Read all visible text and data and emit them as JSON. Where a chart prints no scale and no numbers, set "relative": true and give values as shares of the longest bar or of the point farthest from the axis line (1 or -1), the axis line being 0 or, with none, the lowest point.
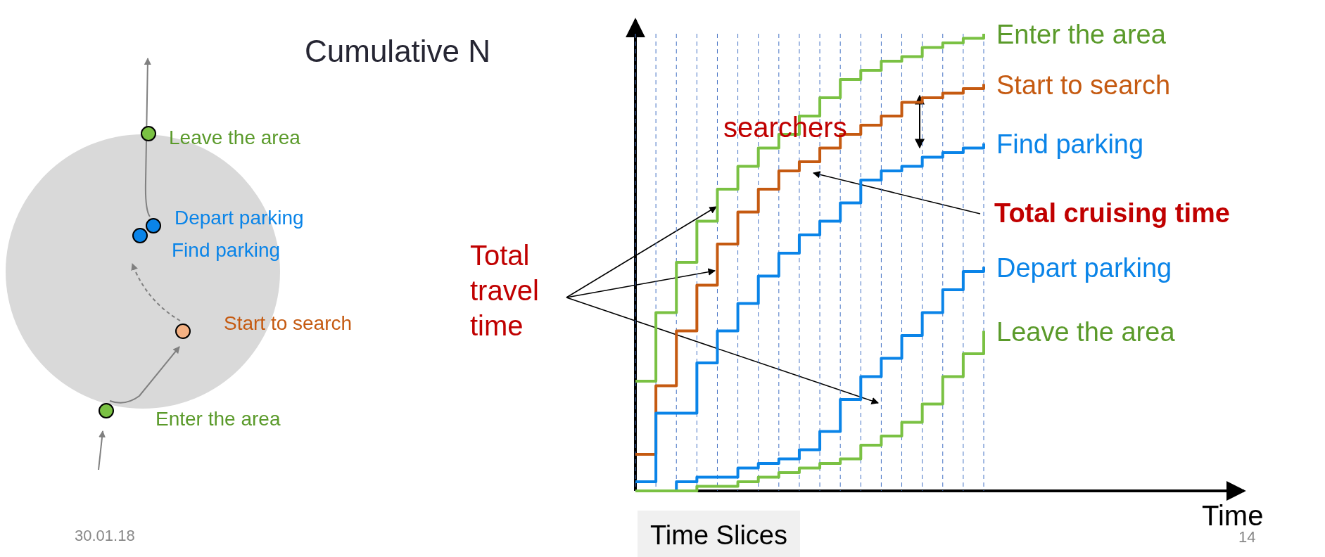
{
  "chart_data": {
    "type": "step",
    "relative": true,
    "ylabel": "Cumulative N",
    "grid": "x",
    "legend": false,
    "marker": "none",
    "line_style": "solid",
    "categories": [
      null,
      null,
      null,
      null,
      null,
      null,
      null,
      null,
      null,
      null,
      null,
      null,
      null,
      null,
      null,
      null,
      null,
      null
    ],
    "series": [
      {
        "name": "Enter the area",
        "color": "#7ac143",
        "values": [
          0.24,
          0.39,
          0.5,
          0.59,
          0.66,
          0.71,
          0.75,
          0.78,
          0.82,
          0.86,
          0.9,
          0.92,
          0.94,
          0.95,
          0.97,
          0.98,
          0.99,
          1.0
        ]
      },
      {
        "name": "Start to search",
        "color": "#c55a11",
        "values": [
          0.08,
          0.23,
          0.35,
          0.45,
          0.54,
          0.61,
          0.66,
          0.7,
          0.72,
          0.75,
          0.78,
          0.8,
          0.82,
          0.85,
          0.86,
          0.87,
          0.88,
          0.89
        ]
      },
      {
        "name": "Find parking",
        "color": "#0a84e8",
        "values": [
          0.02,
          0.17,
          0.17,
          0.28,
          0.35,
          0.41,
          0.47,
          0.52,
          0.56,
          0.59,
          0.63,
          0.68,
          0.7,
          0.71,
          0.73,
          0.74,
          0.75,
          0.76
        ]
      },
      {
        "name": "Depart parking",
        "color": "#0a84e8",
        "values": [
          0,
          0,
          0.02,
          0.03,
          0.03,
          0.05,
          0.06,
          0.07,
          0.09,
          0.13,
          0.2,
          0.25,
          0.29,
          0.34,
          0.39,
          0.44,
          0.48,
          0.49
        ]
      },
      {
        "name": "Leave the area",
        "color": "#7ac143",
        "values": [
          0,
          0,
          0,
          0.01,
          0.01,
          0.02,
          0.03,
          0.04,
          0.05,
          0.06,
          0.07,
          0.1,
          0.12,
          0.15,
          0.19,
          0.25,
          0.3,
          0.35
        ]
      }
    ],
    "annotations": [
      "searchers",
      "Total travel time",
      "Total cruising time",
      "Time Slices",
      "30.01.18",
      "14",
      "Leave the area",
      "Depart parking",
      "Find parking",
      "Start to search",
      "Enter the area",
      "Time"
    ]
  }
}
